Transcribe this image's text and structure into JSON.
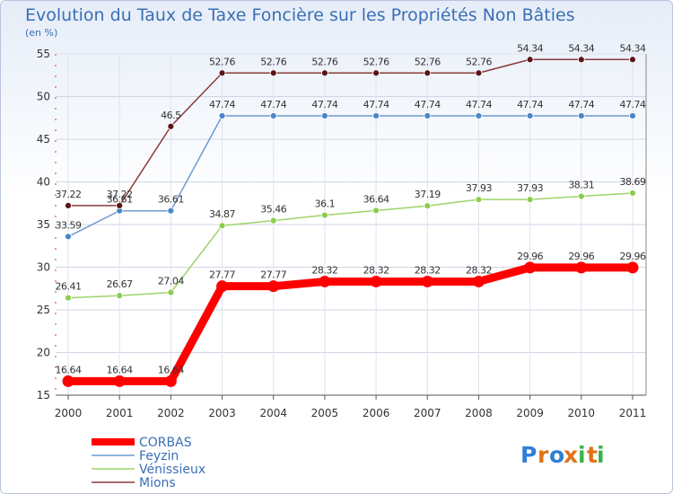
{
  "chart_data": {
    "type": "line",
    "title": "Evolution du Taux de Taxe Foncière sur les Propriétés Non Bâties",
    "unit_label": "(en %)",
    "xlabel": "",
    "ylabel": "",
    "categories": [
      "2000",
      "2001",
      "2002",
      "2003",
      "2004",
      "2005",
      "2006",
      "2007",
      "2008",
      "2009",
      "2010",
      "2011"
    ],
    "ylim": [
      15,
      55
    ],
    "yticks": [
      15,
      20,
      25,
      30,
      35,
      40,
      45,
      50,
      55
    ],
    "grid": true,
    "legend_position": "bottom-left",
    "series": [
      {
        "name": "CORBAS",
        "color": "#ff0000",
        "marker": "#ff0000",
        "values": [
          16.64,
          16.64,
          16.64,
          27.77,
          27.77,
          28.32,
          28.32,
          28.32,
          28.32,
          29.96,
          29.96,
          29.96
        ],
        "labels": [
          "16.64",
          "16.64",
          "16.64",
          "27.77",
          "27.77",
          "28.32",
          "28.32",
          "28.32",
          "28.32",
          "29.96",
          "29.96",
          "29.96"
        ]
      },
      {
        "name": "Feyzin",
        "color": "#6b9bd2",
        "marker": "#4a86c8",
        "values": [
          33.59,
          36.61,
          36.61,
          47.74,
          47.74,
          47.74,
          47.74,
          47.74,
          47.74,
          47.74,
          47.74,
          47.74
        ],
        "labels": [
          "33.59",
          "36.61",
          "36.61",
          "47.74",
          "47.74",
          "47.74",
          "47.74",
          "47.74",
          "47.74",
          "47.74",
          "47.74",
          "47.74"
        ]
      },
      {
        "name": "Vénissieux",
        "color": "#9ed36a",
        "marker": "#8ccc4e",
        "values": [
          26.41,
          26.67,
          27.04,
          34.87,
          35.46,
          36.1,
          36.64,
          37.19,
          37.93,
          37.93,
          38.31,
          38.69
        ],
        "labels": [
          "26.41",
          "26.67",
          "27.04",
          "34.87",
          "35.46",
          "36.1",
          "36.64",
          "37.19",
          "37.93",
          "37.93",
          "38.31",
          "38.69"
        ]
      },
      {
        "name": "Mions",
        "color": "#8b3a3a",
        "marker": "#5a1515",
        "values": [
          37.22,
          37.22,
          46.5,
          52.76,
          52.76,
          52.76,
          52.76,
          52.76,
          52.76,
          54.34,
          54.34,
          54.34
        ],
        "labels": [
          "37.22",
          "37.22",
          "46.5",
          "52.76",
          "52.76",
          "52.76",
          "52.76",
          "52.76",
          "52.76",
          "54.34",
          "54.34",
          "54.34"
        ]
      }
    ]
  },
  "brand": {
    "text": "Proxiti",
    "letters": [
      "P",
      "r",
      "o",
      "x",
      "i",
      "t",
      "i"
    ],
    "colors": [
      "#2e7fd6",
      "#e0731a",
      "#2e7fd6",
      "#e0731a",
      "#3bb34a",
      "#e0731a",
      "#3bb34a"
    ]
  }
}
